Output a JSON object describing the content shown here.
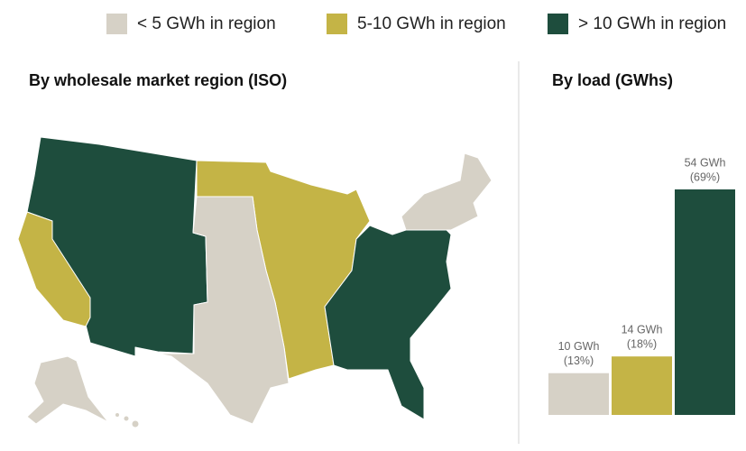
{
  "chart_data": {
    "type": "bar",
    "title": "By load (GWhs)",
    "map_title": "By wholesale market region (ISO)",
    "categories": [
      null
    ],
    "series": [
      {
        "name": "< 5 GWh in region",
        "color": "#d6d1c6",
        "values": [
          10
        ],
        "value_labels": [
          "10 GWh"
        ],
        "shares": [
          13
        ],
        "share_labels": [
          "(13%)"
        ]
      },
      {
        "name": "5-10 GWh in region",
        "color": "#c4b446",
        "values": [
          14
        ],
        "value_labels": [
          "14 GWh"
        ],
        "shares": [
          18
        ],
        "share_labels": [
          "(18%)"
        ]
      },
      {
        "name": "> 10 GWh in region",
        "color": "#1e4d3d",
        "values": [
          54
        ],
        "value_labels": [
          "54 GWh"
        ],
        "shares": [
          69
        ],
        "share_labels": [
          "(69%)"
        ]
      }
    ]
  }
}
